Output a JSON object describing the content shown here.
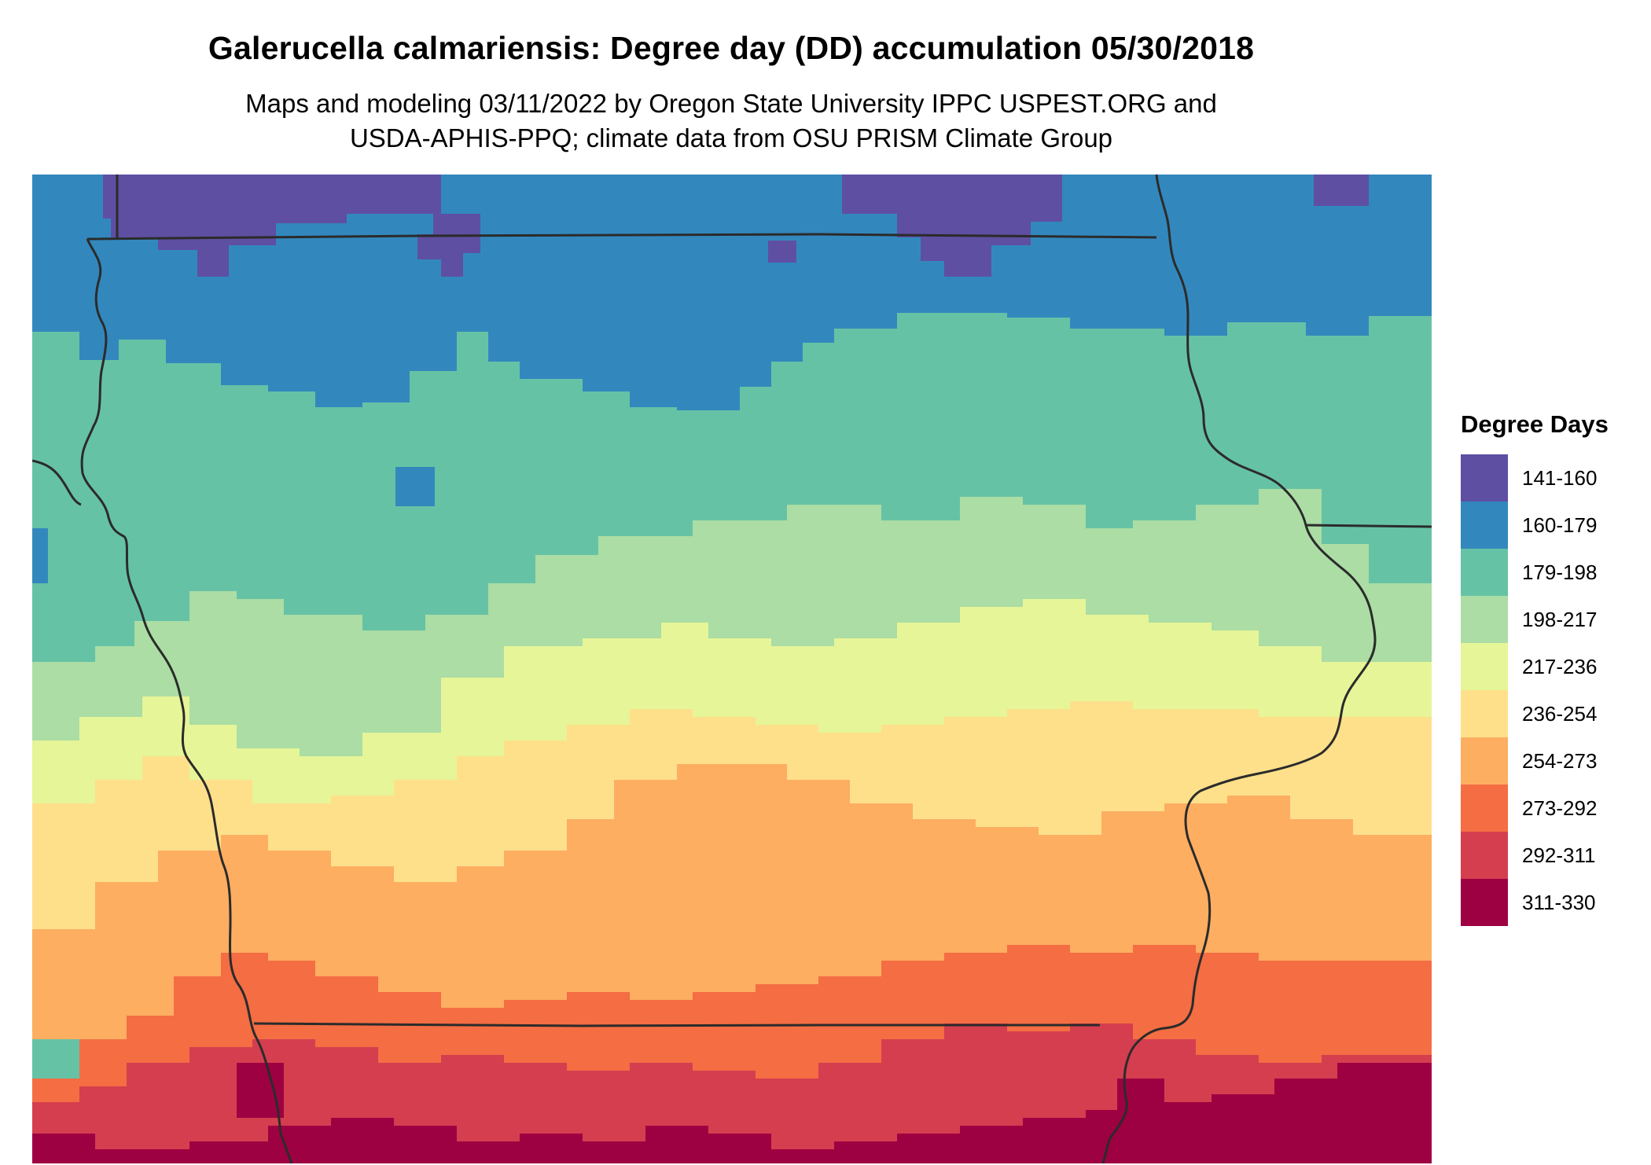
{
  "map": {
    "title": "Galerucella calmariensis: Degree day (DD) accumulation 05/30/2018",
    "subtitle_line1": "Maps and modeling 03/11/2022 by Oregon State University IPPC USPEST.ORG and",
    "subtitle_line2": "USDA-APHIS-PPQ; climate data from OSU PRISM Climate Group",
    "region_shown": "Iowa and surrounding states",
    "boundary_color": "#2b2b2b"
  },
  "legend": {
    "title": "Degree Days",
    "items": [
      {
        "label": "141-160",
        "color": "#5e4fa2"
      },
      {
        "label": "160-179",
        "color": "#3288bd"
      },
      {
        "label": "179-198",
        "color": "#66c2a5"
      },
      {
        "label": "198-217",
        "color": "#abdda4"
      },
      {
        "label": "217-236",
        "color": "#e6f598"
      },
      {
        "label": "236-254",
        "color": "#fee08b"
      },
      {
        "label": "254-273",
        "color": "#fdae61"
      },
      {
        "label": "273-292",
        "color": "#f46d43"
      },
      {
        "label": "292-311",
        "color": "#d53e4f"
      },
      {
        "label": "311-330",
        "color": "#9e0142"
      }
    ]
  }
}
